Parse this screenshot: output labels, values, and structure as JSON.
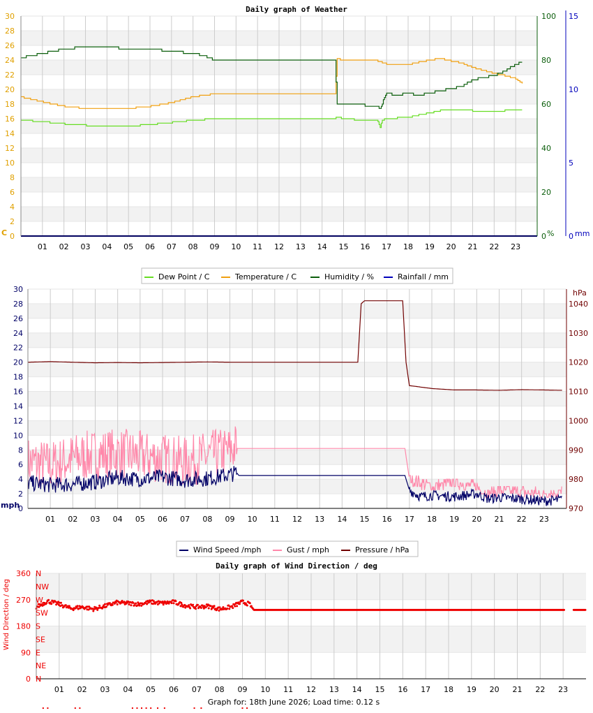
{
  "colors": {
    "dew": "#66dd22",
    "temp": "#f0a010",
    "hum": "#0b5e0b",
    "rain": "#0000bb",
    "wind": "#000066",
    "gust": "#ff88aa",
    "press": "#700000",
    "dir": "#ee0000",
    "band": "#f2f2f2",
    "grid": "#cccccc"
  },
  "footer": "Graph for: 18th June 2026; Load time: 0.12 s",
  "chart_data": [
    {
      "type": "line",
      "title": "Daily graph of Weather",
      "x_ticks": [
        "01",
        "02",
        "03",
        "04",
        "05",
        "06",
        "07",
        "08",
        "09",
        "10",
        "11",
        "12",
        "13",
        "14",
        "15",
        "16",
        "17",
        "18",
        "19",
        "20",
        "21",
        "22",
        "23"
      ],
      "xlim": [
        0,
        24
      ],
      "y_left": {
        "unit": "C",
        "ticks": [
          "0",
          "2",
          "4",
          "6",
          "8",
          "10",
          "12",
          "14",
          "16",
          "18",
          "20",
          "22",
          "24",
          "26",
          "28",
          "30"
        ],
        "ylim": [
          0,
          30
        ]
      },
      "y_right1": {
        "unit": "%",
        "ticks": [
          "0",
          "20",
          "40",
          "60",
          "80",
          "100"
        ],
        "ylim": [
          0,
          100
        ]
      },
      "y_right2": {
        "unit": "mm",
        "ticks": [
          "0",
          "5",
          "10",
          "15"
        ],
        "ylim": [
          0,
          15
        ]
      },
      "legend": [
        "Dew Point / C",
        "Temperature / C",
        "Humidity / %",
        "Rainfall / mm"
      ],
      "legend_position": "bottom",
      "series": [
        {
          "name": "Dew Point / C",
          "axis": "left",
          "step": true,
          "x": [
            0,
            1,
            2,
            3,
            4,
            5,
            6,
            7,
            8,
            9,
            10,
            11,
            12,
            13,
            14,
            14.6,
            14.7,
            15,
            16,
            16.6,
            16.7,
            16.8,
            17,
            18,
            18.5,
            19,
            19.5,
            20,
            20.5,
            21,
            21.5,
            22,
            22.5,
            23,
            23.3
          ],
          "y": [
            15.8,
            15.6,
            15.3,
            15.1,
            15.0,
            15.0,
            15.2,
            15.5,
            15.8,
            16.0,
            16.0,
            16.0,
            16.0,
            16.0,
            16.0,
            16.0,
            16.3,
            16.0,
            15.8,
            15.7,
            14.8,
            15.8,
            16.0,
            16.2,
            16.5,
            16.8,
            17.1,
            17.3,
            17.2,
            17.1,
            16.9,
            17.0,
            17.1,
            17.3,
            17.2
          ]
        },
        {
          "name": "Temperature / C",
          "axis": "left",
          "step": true,
          "x": [
            0,
            1,
            2,
            3,
            4,
            5,
            6,
            7,
            8,
            9,
            10,
            11,
            12,
            13,
            14,
            14.6,
            14.7,
            15,
            16,
            16.6,
            17,
            18,
            18.5,
            19,
            19.5,
            20,
            20.5,
            21,
            21.5,
            22,
            22.5,
            23,
            23.3
          ],
          "y": [
            19.0,
            18.3,
            17.7,
            17.4,
            17.4,
            17.4,
            17.7,
            18.2,
            19.0,
            19.4,
            19.4,
            19.4,
            19.4,
            19.4,
            19.4,
            19.4,
            24.2,
            24.0,
            24.0,
            23.9,
            23.5,
            23.4,
            23.7,
            24.0,
            24.2,
            23.9,
            23.6,
            23.0,
            22.6,
            22.2,
            21.9,
            21.5,
            20.8
          ]
        },
        {
          "name": "Humidity / %",
          "axis": "right1",
          "step": true,
          "x": [
            0,
            0.5,
            1,
            1.5,
            2,
            3,
            4,
            5,
            6,
            7,
            8,
            8.5,
            9,
            10,
            11,
            12,
            13,
            14,
            14.6,
            14.7,
            15,
            15.5,
            16,
            16.6,
            16.7,
            17,
            17.5,
            18,
            18.5,
            19,
            19.5,
            20,
            20.5,
            21,
            21.5,
            22,
            22.5,
            23,
            23.3
          ],
          "y": [
            81,
            82,
            83,
            84,
            85,
            86,
            86,
            85,
            85,
            84,
            83,
            82,
            80,
            80,
            80,
            80,
            80,
            80,
            80,
            60,
            60,
            59.5,
            59.5,
            59,
            58,
            65,
            64,
            65,
            64,
            65,
            66,
            67,
            68,
            71,
            72,
            73,
            75,
            78,
            79
          ]
        },
        {
          "name": "Rainfall / mm",
          "axis": "right2",
          "step": true,
          "x": [
            0,
            24
          ],
          "y": [
            0,
            0
          ]
        }
      ]
    },
    {
      "type": "line",
      "title": "",
      "x_ticks": [
        "01",
        "02",
        "03",
        "04",
        "05",
        "06",
        "07",
        "08",
        "09",
        "10",
        "11",
        "12",
        "13",
        "14",
        "15",
        "16",
        "17",
        "18",
        "19",
        "20",
        "21",
        "22",
        "23"
      ],
      "xlim": [
        0,
        24
      ],
      "y_left": {
        "unit": "mph",
        "ticks": [
          "0",
          "2",
          "4",
          "6",
          "8",
          "10",
          "12",
          "14",
          "16",
          "18",
          "20",
          "22",
          "24",
          "26",
          "28",
          "30"
        ],
        "ylim": [
          0,
          30
        ]
      },
      "y_right": {
        "unit": "hPa",
        "ticks": [
          "970",
          "980",
          "990",
          "1000",
          "1010",
          "1020",
          "1030",
          "1040"
        ],
        "ylim": [
          970,
          1045
        ]
      },
      "legend": [
        "Wind Speed /mph",
        "Gust / mph",
        "Pressure / hPa"
      ],
      "legend_position": "bottom",
      "series": [
        {
          "name": "Wind Speed /mph",
          "axis": "left",
          "noisy": true,
          "x": [
            0,
            1,
            2,
            3,
            4,
            5,
            6,
            7,
            8,
            9,
            9.3,
            9.4,
            10,
            11,
            12,
            13,
            14,
            15,
            16,
            16.8,
            17,
            17.5,
            18,
            19,
            20,
            20.5,
            21,
            22,
            23,
            23.8
          ],
          "y": [
            3.5,
            3.2,
            3.3,
            3.6,
            4.2,
            4.0,
            4.3,
            3.9,
            4.1,
            4.6,
            4.9,
            4.5,
            4.5,
            4.5,
            4.5,
            4.5,
            4.5,
            4.5,
            4.5,
            4.5,
            2.5,
            1.6,
            1.8,
            1.6,
            2.0,
            1.3,
            1.5,
            1.3,
            1.0,
            1.2
          ]
        },
        {
          "name": "Gust / mph",
          "axis": "left",
          "noisy": true,
          "x": [
            0,
            1,
            2,
            3,
            4,
            5,
            6,
            7,
            8,
            9,
            9.3,
            9.4,
            10,
            11,
            12,
            13,
            14,
            15,
            16,
            16.8,
            17,
            17.5,
            18,
            19,
            20,
            20.5,
            21,
            22,
            23,
            23.8
          ],
          "y": [
            6.0,
            5.5,
            6.5,
            7.0,
            7.2,
            6.8,
            6.5,
            6.0,
            6.8,
            7.5,
            8.2,
            8.2,
            8.2,
            8.2,
            8.2,
            8.2,
            8.2,
            8.2,
            8.2,
            8.2,
            4.0,
            3.5,
            3.0,
            3.5,
            3.0,
            2.0,
            2.5,
            2.2,
            2.0,
            2.2
          ]
        },
        {
          "name": "Pressure / hPa",
          "axis": "right",
          "x": [
            0,
            1,
            2,
            3,
            4,
            5,
            6,
            7,
            8,
            9,
            10,
            11,
            12,
            13,
            14,
            14.7,
            14.85,
            15,
            16,
            16.7,
            16.85,
            17,
            18,
            19,
            20,
            21,
            22,
            23,
            23.8
          ],
          "y": [
            1020,
            1020.2,
            1020,
            1019.8,
            1019.9,
            1019.8,
            1019.9,
            1020,
            1020.1,
            1020,
            1020,
            1020,
            1020,
            1020,
            1020,
            1020,
            1040,
            1041,
            1041,
            1041,
            1020,
            1012,
            1011,
            1010.5,
            1010.5,
            1010.4,
            1010.6,
            1010.5,
            1010.4
          ]
        }
      ]
    },
    {
      "type": "scatter",
      "title": "Daily graph of Wind Direction / deg",
      "x_ticks": [
        "01",
        "02",
        "03",
        "04",
        "05",
        "06",
        "07",
        "08",
        "09",
        "10",
        "11",
        "12",
        "13",
        "14",
        "15",
        "16",
        "17",
        "18",
        "19",
        "20",
        "21",
        "22",
        "23"
      ],
      "xlim": [
        0,
        24
      ],
      "ylabel": "Wind Direction / deg",
      "y_ticks": [
        "0",
        "90",
        "180",
        "270",
        "360"
      ],
      "ylim": [
        0,
        360
      ],
      "compass": [
        "N",
        "NE",
        "E",
        "SE",
        "S",
        "SW",
        "W",
        "NW",
        "N"
      ],
      "series": [
        {
          "name": "Wind Direction / deg",
          "noisy": true,
          "x": [
            0,
            0.5,
            1,
            1.5,
            2,
            2.5,
            3,
            3.5,
            4,
            4.5,
            5,
            5.5,
            6,
            6.5,
            7,
            7.5,
            8,
            8.5,
            9,
            9.3,
            9.5,
            10,
            12,
            14,
            16,
            18,
            20,
            22,
            23,
            23.5,
            24
          ],
          "y": [
            245,
            265,
            255,
            240,
            245,
            238,
            248,
            260,
            258,
            255,
            262,
            258,
            262,
            250,
            245,
            248,
            238,
            245,
            262,
            255,
            235,
            235,
            235,
            235,
            235,
            235,
            235,
            235,
            235,
            235,
            235
          ]
        }
      ]
    }
  ]
}
